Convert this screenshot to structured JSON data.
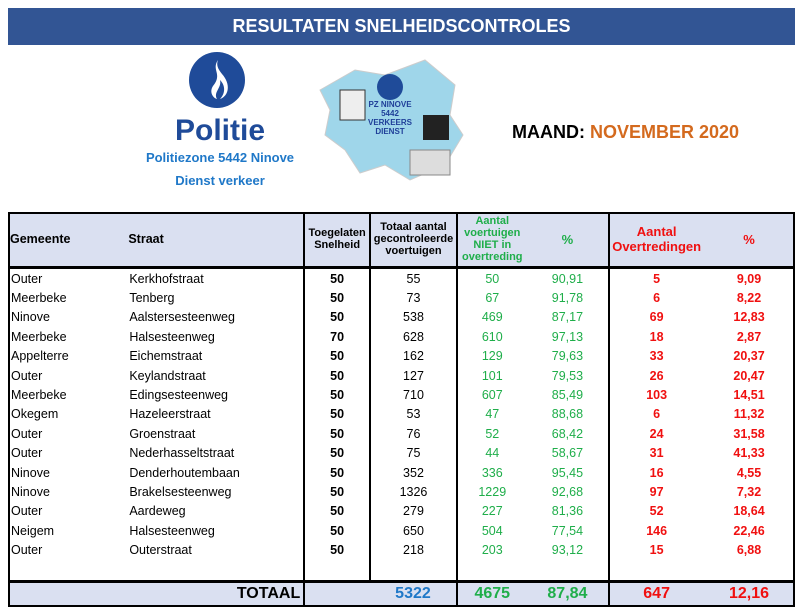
{
  "title": "RESULTATEN SNELHEIDSCONTROLES",
  "logo": {
    "brand": "Politie",
    "zone": "Politiezone 5442 Ninove",
    "dept": "Dienst verkeer"
  },
  "badge_text": [
    "PZ NINOVE",
    "5442",
    "VERKEERS",
    "DIENST"
  ],
  "month": {
    "label": "MAAND: ",
    "value": "NOVEMBER 2020"
  },
  "colors": {
    "title_bar": "#325594",
    "header_bg": "#dae0f1",
    "green": "#1fae4a",
    "red": "#f01010",
    "month": "#d46a1e"
  },
  "headers": {
    "gemeente": "Gemeente",
    "straat": "Straat",
    "snelheid": "Toegelaten Snelheid",
    "totaal": "Totaal aantal gecontroleerde voertuigen",
    "niet": "Aantal voertuigen NIET in overtreding",
    "pct_niet": "%",
    "overtr": "Aantal Overtredingen",
    "pct_overtr": "%"
  },
  "rows": [
    [
      "Outer",
      "Kerkhofstraat",
      "50",
      "55",
      "50",
      "90,91",
      "5",
      "9,09"
    ],
    [
      "Meerbeke",
      "Tenberg",
      "50",
      "73",
      "67",
      "91,78",
      "6",
      "8,22"
    ],
    [
      "Ninove",
      "Aalstersesteenweg",
      "50",
      "538",
      "469",
      "87,17",
      "69",
      "12,83"
    ],
    [
      "Meerbeke",
      "Halsesteenweg",
      "70",
      "628",
      "610",
      "97,13",
      "18",
      "2,87"
    ],
    [
      "Appelterre",
      "Eichemstraat",
      "50",
      "162",
      "129",
      "79,63",
      "33",
      "20,37"
    ],
    [
      "Outer",
      "Keylandstraat",
      "50",
      "127",
      "101",
      "79,53",
      "26",
      "20,47"
    ],
    [
      "Meerbeke",
      "Edingsesteenweg",
      "50",
      "710",
      "607",
      "85,49",
      "103",
      "14,51"
    ],
    [
      "Okegem",
      "Hazeleerstraat",
      "50",
      "53",
      "47",
      "88,68",
      "6",
      "11,32"
    ],
    [
      "Outer",
      "Groenstraat",
      "50",
      "76",
      "52",
      "68,42",
      "24",
      "31,58"
    ],
    [
      "Outer",
      "Nederhasseltstraat",
      "50",
      "75",
      "44",
      "58,67",
      "31",
      "41,33"
    ],
    [
      "Ninove",
      "Denderhoutembaan",
      "50",
      "352",
      "336",
      "95,45",
      "16",
      "4,55"
    ],
    [
      "Ninove",
      "Brakelsesteenweg",
      "50",
      "1326",
      "1229",
      "92,68",
      "97",
      "7,32"
    ],
    [
      "Outer",
      "Aardeweg",
      "50",
      "279",
      "227",
      "81,36",
      "52",
      "18,64"
    ],
    [
      "Neigem",
      "Halsesteenweg",
      "50",
      "650",
      "504",
      "77,54",
      "146",
      "22,46"
    ],
    [
      "Outer",
      "Outerstraat",
      "50",
      "218",
      "203",
      "93,12",
      "15",
      "6,88"
    ]
  ],
  "total": {
    "label": "TOTAAL",
    "totaal": "5322",
    "niet": "4675",
    "pct_niet": "87,84",
    "overtr": "647",
    "pct_overtr": "12,16"
  }
}
